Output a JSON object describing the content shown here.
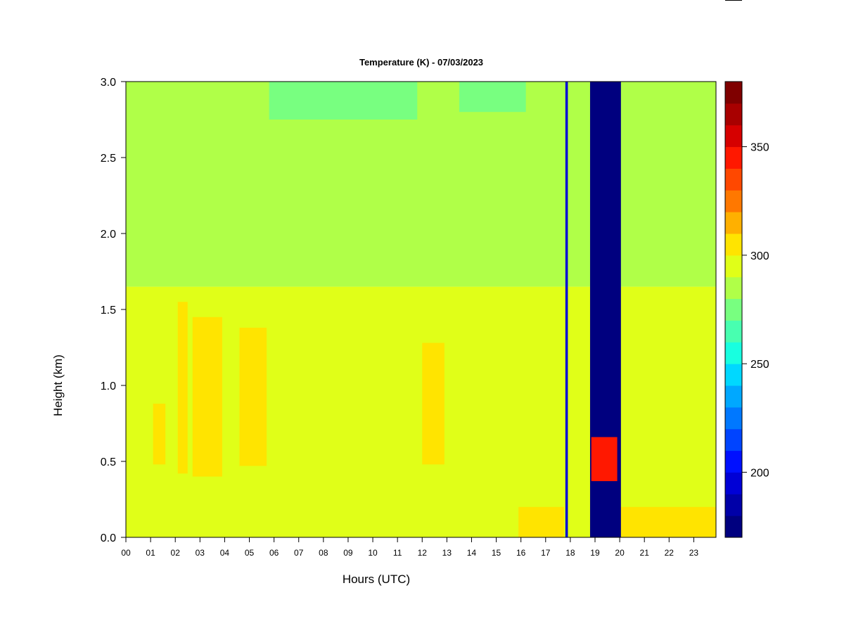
{
  "chart_data": {
    "type": "heatmap",
    "title": "Temperature (K) - 07/03/2023",
    "xlabel": "Hours (UTC)",
    "ylabel": "Height (km)",
    "xlim": [
      0,
      23.9
    ],
    "ylim": [
      0,
      3.0
    ],
    "x_ticks": [
      "00",
      "01",
      "02",
      "03",
      "04",
      "05",
      "06",
      "07",
      "08",
      "09",
      "10",
      "11",
      "12",
      "13",
      "14",
      "15",
      "16",
      "17",
      "18",
      "19",
      "20",
      "21",
      "22",
      "23"
    ],
    "y_ticks": [
      "0.0",
      "0.5",
      "1.0",
      "1.5",
      "2.0",
      "2.5",
      "3.0"
    ],
    "colorbar": {
      "range": [
        170,
        380
      ],
      "tick_values": [
        200,
        250,
        300,
        350
      ],
      "tick_labels": [
        "200",
        "250",
        "300",
        "350"
      ],
      "colors": [
        "#00007f",
        "#0000a8",
        "#0000d6",
        "#0010ff",
        "#0044ff",
        "#0078ff",
        "#00a8ff",
        "#00d8ff",
        "#18ffe0",
        "#48ffb0",
        "#78ff80",
        "#b0ff48",
        "#e0ff18",
        "#ffe400",
        "#ffb000",
        "#ff7800",
        "#ff4800",
        "#ff1800",
        "#d60000",
        "#a80000",
        "#7f0000"
      ]
    },
    "regions": [
      {
        "x_start": 0,
        "x_end": 23.9,
        "y_bottom": 0,
        "y_top": 1.65,
        "level": "295-300 K",
        "color": "#e0ff18"
      },
      {
        "x_start": 0,
        "x_end": 23.9,
        "y_bottom": 1.65,
        "y_top": 3.0,
        "level": "285-295 K",
        "color": "#b0ff48"
      },
      {
        "x_start": 5.8,
        "x_end": 11.8,
        "y_bottom": 2.75,
        "y_top": 3.0,
        "level": "280-285 K",
        "color": "#78ff80"
      },
      {
        "x_start": 13.5,
        "x_end": 16.2,
        "y_bottom": 2.8,
        "y_top": 3.0,
        "level": "280-285 K",
        "color": "#78ff80"
      },
      {
        "x_start": 1.1,
        "x_end": 1.6,
        "y_bottom": 0.48,
        "y_top": 0.88,
        "level": "300-305 K",
        "color": "#ffe400"
      },
      {
        "x_start": 2.1,
        "x_end": 2.5,
        "y_bottom": 0.42,
        "y_top": 1.55,
        "level": "300-305 K",
        "color": "#ffe400"
      },
      {
        "x_start": 2.7,
        "x_end": 3.9,
        "y_bottom": 0.4,
        "y_top": 1.45,
        "level": "300-305 K",
        "color": "#ffe400"
      },
      {
        "x_start": 4.6,
        "x_end": 5.7,
        "y_bottom": 0.47,
        "y_top": 1.38,
        "level": "300-305 K",
        "color": "#ffe400"
      },
      {
        "x_start": 12.0,
        "x_end": 12.9,
        "y_bottom": 0.48,
        "y_top": 1.28,
        "level": "300-305 K",
        "color": "#ffe400"
      },
      {
        "x_start": 15.9,
        "x_end": 17.75,
        "y_bottom": 0,
        "y_top": 0.2,
        "level": "300-305 K",
        "color": "#ffe400"
      },
      {
        "x_start": 20.0,
        "x_end": 23.9,
        "y_bottom": 0,
        "y_top": 0.2,
        "level": "300-305 K",
        "color": "#ffe400"
      },
      {
        "x_start": 18.8,
        "x_end": 20.05,
        "y_bottom": 0,
        "y_top": 3.0,
        "level": "170-180 K",
        "color": "#00007f"
      },
      {
        "x_start": 18.85,
        "x_end": 19.9,
        "y_bottom": 0.37,
        "y_top": 0.66,
        "level": "330-360 K",
        "color": "#ff1800"
      }
    ],
    "annotations": [
      {
        "x": 17.85,
        "width_hours": 0.1,
        "y_bottom": 0,
        "y_top": 3.0,
        "level": "190-200 K",
        "color": "#0000d6"
      }
    ]
  }
}
